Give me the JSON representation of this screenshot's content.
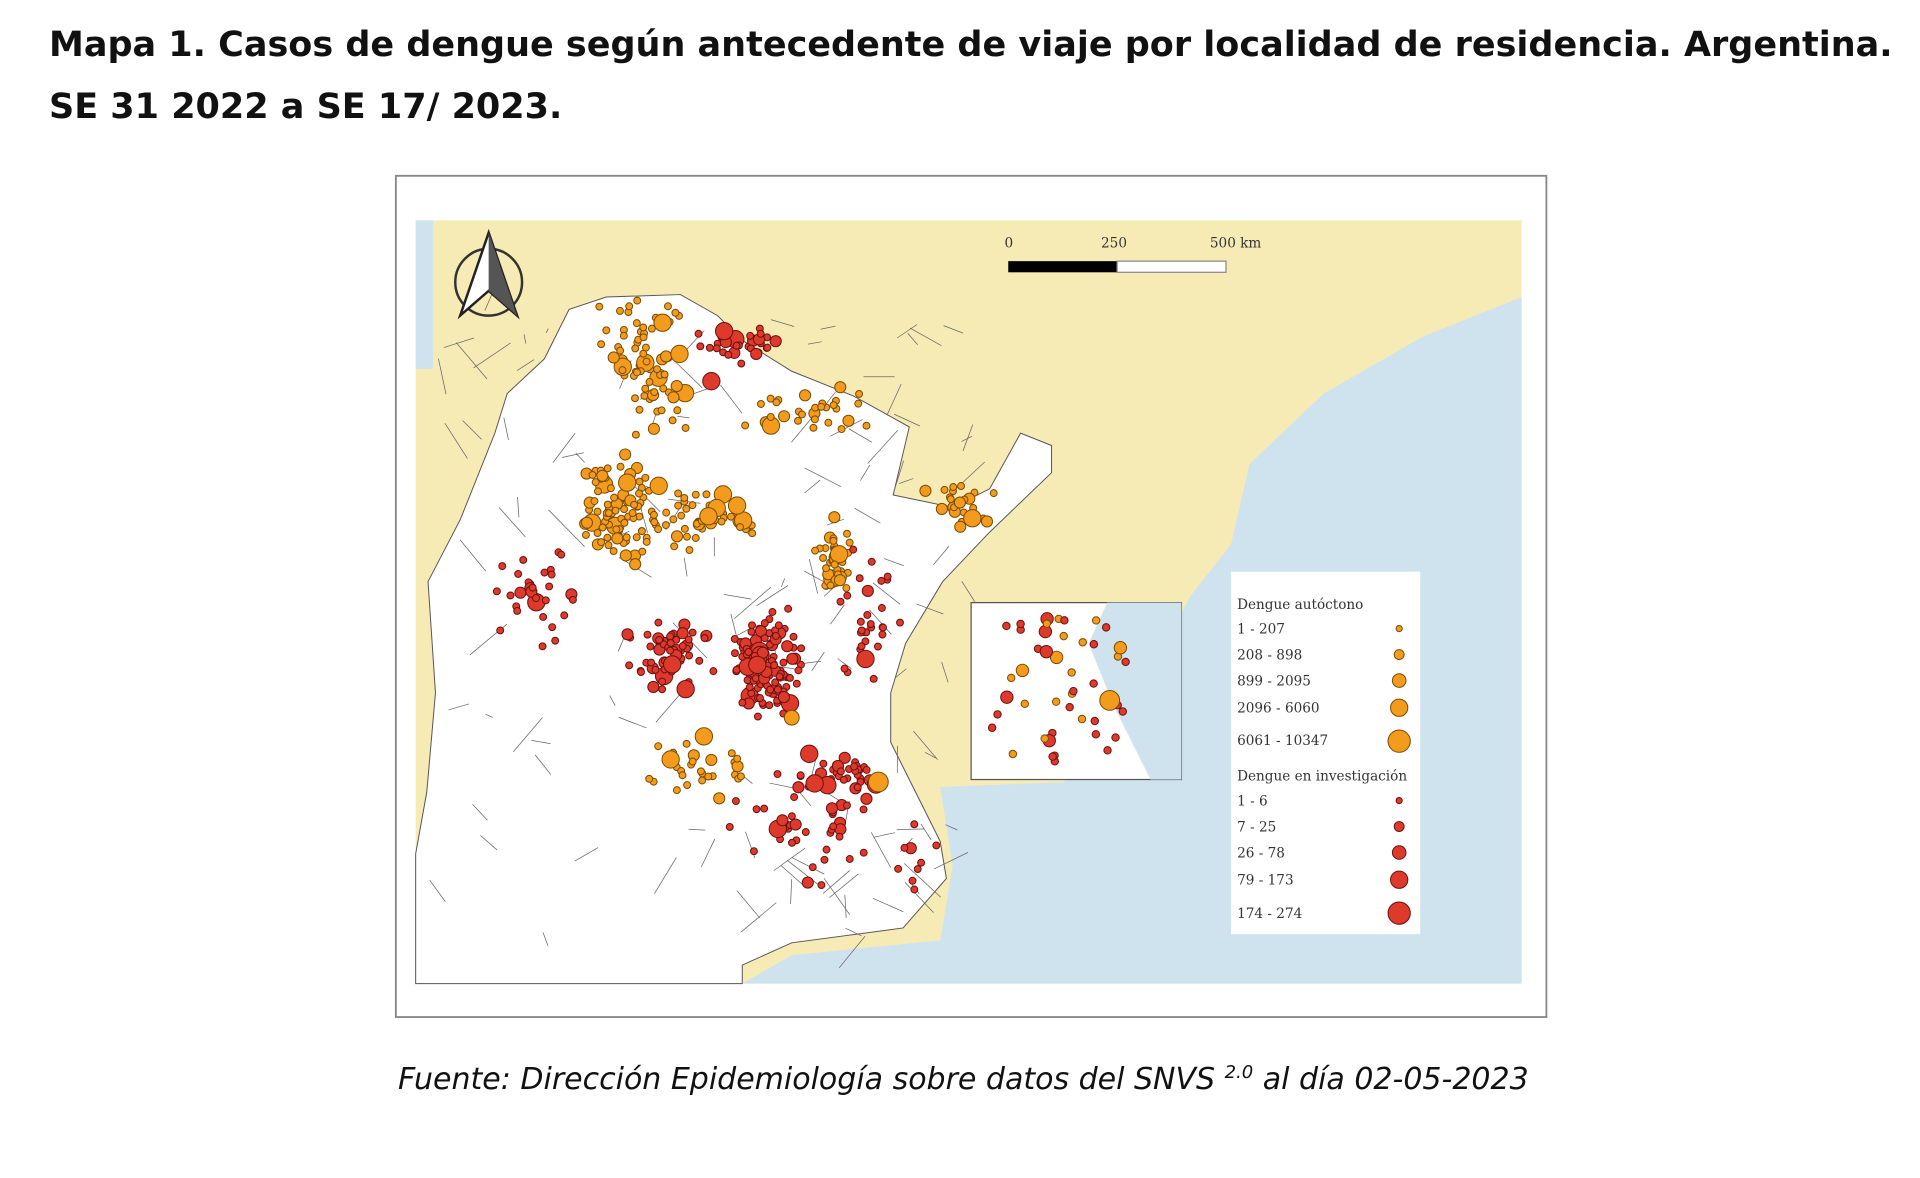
{
  "title": "Mapa 1. Casos de dengue según antecedente de viaje por localidad de residencia. Argentina. SE 31 2022 a SE 17/ 2023.",
  "source": {
    "text": "Fuente: Dirección Epidemiología sobre datos del SNVS",
    "superscript": "2.0",
    "suffix": "al día 02-05-2023"
  },
  "map": {
    "north_arrow": "north-arrow-icon",
    "scale_bar": {
      "labels": [
        "0",
        "250",
        "500 km"
      ]
    },
    "colors": {
      "land_neighbors": "#f7ebb5",
      "ocean": "#cfe3ef",
      "argentina": "#ffffff",
      "autoctono": "#f29b1d",
      "investigacion": "#dd3a2c"
    },
    "legend": {
      "autoctono": {
        "title": "Dengue autóctono",
        "classes": [
          "1 - 207",
          "208 - 898",
          "899 - 2095",
          "2096 - 6060",
          "6061 - 10347"
        ]
      },
      "investigacion": {
        "title": "Dengue en investigación",
        "classes": [
          "1 - 6",
          "7 - 25",
          "26 - 78",
          "79 - 173",
          "174 - 274"
        ]
      }
    }
  }
}
